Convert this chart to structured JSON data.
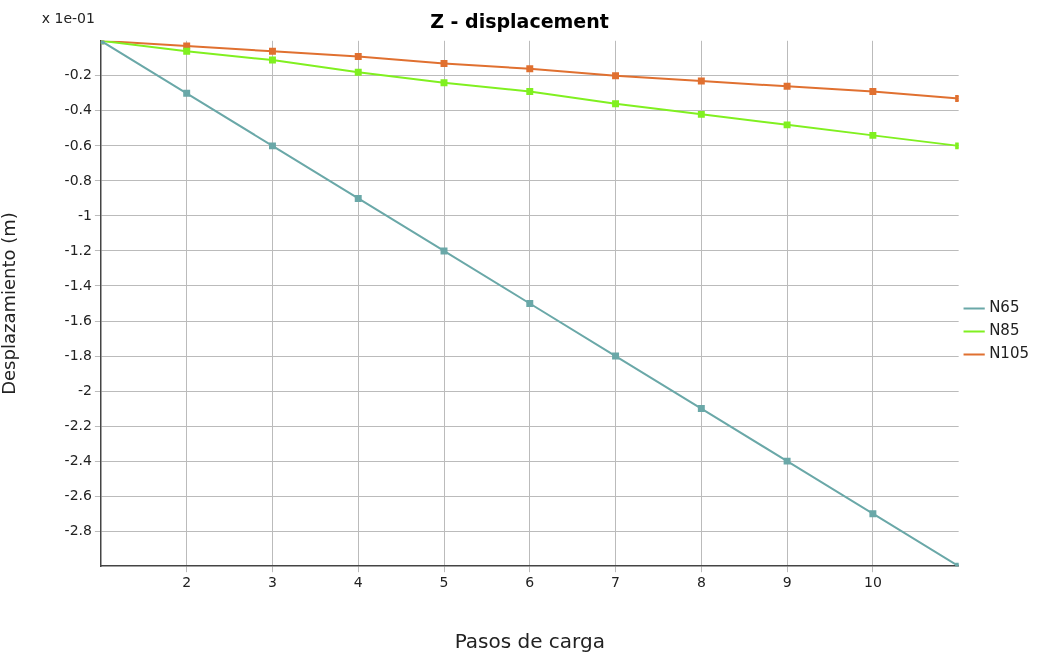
{
  "chart_data": {
    "type": "line",
    "title": "Z - displacement",
    "xlabel": "Pasos de carga",
    "ylabel": "Desplazamiento (m)",
    "annotations": [
      "x 1e-01"
    ],
    "x": [
      1,
      2,
      3,
      4,
      5,
      6,
      7,
      8,
      9,
      10,
      11
    ],
    "series": [
      {
        "name": "N65",
        "color": "#6aa8a8",
        "values": [
          0,
          -0.3,
          -0.6,
          -0.9,
          -1.2,
          -1.5,
          -1.8,
          -2.1,
          -2.4,
          -2.7,
          -3.0
        ]
      },
      {
        "name": "N85",
        "color": "#80f020",
        "values": [
          0,
          -0.06,
          -0.11,
          -0.18,
          -0.24,
          -0.29,
          -0.36,
          -0.42,
          -0.48,
          -0.54,
          -0.6
        ]
      },
      {
        "name": "N105",
        "color": "#e07030",
        "values": [
          0,
          -0.03,
          -0.06,
          -0.09,
          -0.13,
          -0.16,
          -0.2,
          -0.23,
          -0.26,
          -0.29,
          -0.33
        ]
      }
    ],
    "xlim": [
      1,
      11
    ],
    "xticks": [
      2,
      3,
      4,
      5,
      6,
      7,
      8,
      9,
      10
    ],
    "ylim": [
      -3,
      0
    ],
    "yticks": [
      -0.2,
      -0.4,
      -0.6,
      -0.8,
      -1,
      -1.2,
      -1.4,
      -1.6,
      -1.8,
      -2,
      -2.2,
      -2.4,
      -2.6,
      -2.8
    ],
    "grid": true,
    "legend": "right",
    "marker": "square",
    "line_style": "solid"
  }
}
